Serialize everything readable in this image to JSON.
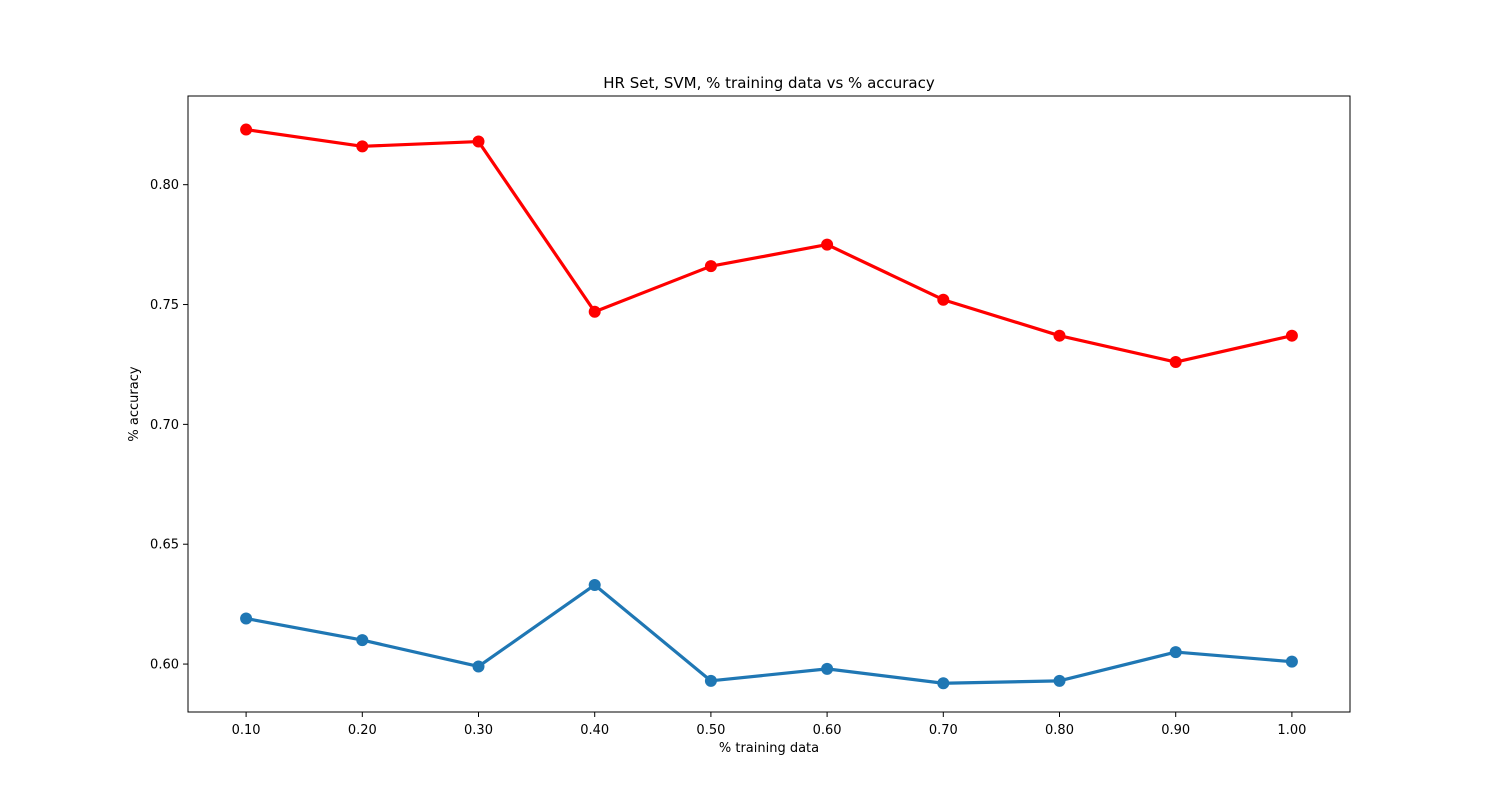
{
  "chart_data": {
    "type": "line",
    "title": "HR Set, SVM, % training data vs % accuracy",
    "xlabel": "% training data",
    "ylabel": "% accuracy",
    "x": [
      0.1,
      0.2,
      0.3,
      0.4,
      0.5,
      0.6,
      0.7,
      0.8,
      0.9,
      1.0
    ],
    "x_tick_labels": [
      "0.10",
      "0.20",
      "0.30",
      "0.40",
      "0.50",
      "0.60",
      "0.70",
      "0.80",
      "0.90",
      "1.00"
    ],
    "y_ticks": [
      0.6,
      0.65,
      0.7,
      0.75,
      0.8
    ],
    "y_tick_labels": [
      "0.60",
      "0.65",
      "0.70",
      "0.75",
      "0.80"
    ],
    "xlim": [
      0.05,
      1.05
    ],
    "ylim": [
      0.58,
      0.837
    ],
    "grid": false,
    "series": [
      {
        "color": "#ff0000",
        "values": [
          0.823,
          0.816,
          0.818,
          0.747,
          0.766,
          0.775,
          0.752,
          0.737,
          0.726,
          0.737
        ]
      },
      {
        "color": "#1f77b4",
        "values": [
          0.619,
          0.61,
          0.599,
          0.633,
          0.593,
          0.598,
          0.592,
          0.593,
          0.605,
          0.601
        ]
      }
    ]
  }
}
